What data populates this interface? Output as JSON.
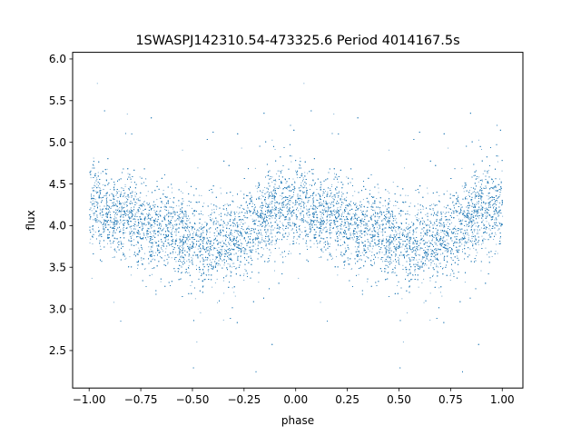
{
  "chart_data": {
    "type": "scatter",
    "title": "1SWASPJ142310.54-473325.6 Period 4014167.5s",
    "xlabel": "phase",
    "ylabel": "flux",
    "xlim": [
      -1.08,
      1.1
    ],
    "ylim": [
      2.05,
      6.08
    ],
    "xticks": [
      -1.0,
      -0.75,
      -0.5,
      -0.25,
      0.0,
      0.25,
      0.5,
      0.75,
      1.0
    ],
    "xtick_labels": [
      "−1.00",
      "−0.75",
      "−0.50",
      "−0.25",
      "0.00",
      "0.25",
      "0.50",
      "0.75",
      "1.00"
    ],
    "yticks": [
      2.5,
      3.0,
      3.5,
      4.0,
      4.5,
      5.0,
      5.5,
      6.0
    ],
    "ytick_labels": [
      "2.5",
      "3.0",
      "3.5",
      "4.0",
      "4.5",
      "5.0",
      "5.5",
      "6.0"
    ],
    "grid": false,
    "marker_color": "#1f77b4",
    "x_range": [
      -1.0,
      1.0
    ],
    "mean_flux_profile": {
      "phase": [
        0.0,
        0.05,
        0.1,
        0.15,
        0.2,
        0.25,
        0.3,
        0.35,
        0.4,
        0.45,
        0.5,
        0.55,
        0.6,
        0.65,
        0.7,
        0.75,
        0.8,
        0.85,
        0.9,
        0.95,
        1.0
      ],
      "flux": [
        4.25,
        4.22,
        4.18,
        4.12,
        4.08,
        4.02,
        3.98,
        3.93,
        3.88,
        3.85,
        3.82,
        3.8,
        3.78,
        3.8,
        3.86,
        3.95,
        4.05,
        4.12,
        4.18,
        4.22,
        4.25
      ]
    },
    "flux_range": [
      2.25,
      5.88
    ],
    "typical_spread": 0.25
  }
}
